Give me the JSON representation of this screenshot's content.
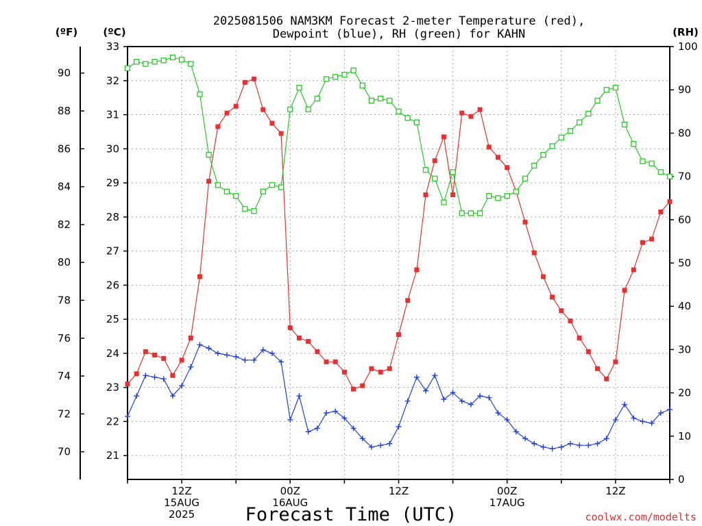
{
  "title": {
    "line1": "2025081506 NAM3KM Forecast 2-meter Temperature (red),",
    "line2": "Dewpoint (blue), RH (green) for KAHN"
  },
  "units": {
    "f": "(ºF)",
    "c": "(ºC)",
    "rh": "(RH)"
  },
  "xlabel": "Forecast Time (UTC)",
  "credit": "coolwx.com/modelts",
  "x_tick_labels": [
    {
      "h": 6,
      "lines": [
        "12Z",
        "15AUG",
        "2025"
      ]
    },
    {
      "h": 18,
      "lines": [
        "00Z",
        "16AUG"
      ]
    },
    {
      "h": 30,
      "lines": [
        "12Z"
      ]
    },
    {
      "h": 42,
      "lines": [
        "00Z",
        "17AUG"
      ]
    },
    {
      "h": 54,
      "lines": [
        "12Z"
      ]
    }
  ],
  "colors": {
    "temp": "#e8302e",
    "dew": "#1c3fdc",
    "rh": "#22cc22",
    "grid": "#a0a0a0"
  },
  "chart_data": {
    "type": "line",
    "title": "2025081506 NAM3KM Forecast 2-meter Temperature (red), Dewpoint (blue), RH (green) for KAHN",
    "xlabel": "Forecast Time (UTC)",
    "x_description": "Forecast hours from 2025-08-15 06Z, hourly, 0-60",
    "xlim": [
      0,
      60
    ],
    "y_left_celsius": {
      "ylim": [
        20.3,
        33
      ],
      "ticks": [
        21,
        22,
        23,
        24,
        25,
        26,
        27,
        28,
        29,
        30,
        31,
        32,
        33
      ]
    },
    "y_left_fahrenheit": {
      "ticks": [
        70,
        72,
        74,
        76,
        78,
        80,
        82,
        84,
        86,
        88,
        90
      ]
    },
    "y_right_rh": {
      "ylim": [
        0,
        100
      ],
      "ticks": [
        0,
        10,
        20,
        30,
        40,
        50,
        60,
        70,
        80,
        90,
        100
      ]
    },
    "grid": true,
    "series": [
      {
        "name": "Temperature",
        "axis": "celsius",
        "marker": "filled-square",
        "values": [
          23.1,
          23.4,
          24.05,
          23.95,
          23.85,
          23.35,
          23.8,
          24.45,
          26.25,
          29.05,
          30.65,
          31.05,
          31.25,
          31.95,
          32.05,
          31.15,
          30.75,
          30.45,
          24.75,
          24.45,
          24.35,
          24.05,
          23.75,
          23.75,
          23.45,
          22.95,
          23.05,
          23.55,
          23.45,
          23.55,
          24.55,
          25.55,
          26.45,
          28.65,
          29.65,
          30.35,
          28.65,
          31.05,
          30.95,
          31.15,
          30.05,
          29.75,
          29.45,
          28.75,
          27.85,
          26.95,
          26.25,
          25.65,
          25.25,
          24.95,
          24.45,
          24.05,
          23.55,
          23.25,
          23.75,
          25.85,
          26.45,
          27.25,
          27.35,
          28.15,
          28.45
        ]
      },
      {
        "name": "Dewpoint",
        "axis": "celsius",
        "marker": "plus",
        "values": [
          22.15,
          22.75,
          23.35,
          23.3,
          23.25,
          22.75,
          23.05,
          23.6,
          24.25,
          24.15,
          24.0,
          23.95,
          23.9,
          23.8,
          23.8,
          24.1,
          24.0,
          23.75,
          22.05,
          22.75,
          21.7,
          21.8,
          22.25,
          22.3,
          22.1,
          21.8,
          21.5,
          21.25,
          21.3,
          21.35,
          21.85,
          22.6,
          23.3,
          22.9,
          23.35,
          22.65,
          22.85,
          22.6,
          22.5,
          22.75,
          22.7,
          22.25,
          22.05,
          21.7,
          21.5,
          21.35,
          21.25,
          21.2,
          21.25,
          21.35,
          21.3,
          21.3,
          21.35,
          21.5,
          22.05,
          22.5,
          22.1,
          22.0,
          21.95,
          22.25,
          22.35
        ]
      },
      {
        "name": "RH",
        "axis": "rh",
        "marker": "open-square",
        "values": [
          95,
          96.5,
          96,
          96.5,
          96.8,
          97.5,
          97,
          96,
          89,
          75,
          68,
          66.5,
          65.5,
          62.5,
          62,
          66.5,
          68,
          67.5,
          85.5,
          90.5,
          85.5,
          88,
          92.5,
          93,
          93.5,
          94.5,
          91,
          87.5,
          88,
          87.5,
          85,
          83.5,
          82.5,
          71.5,
          69.5,
          64,
          71,
          61.5,
          61.5,
          61.5,
          65.5,
          65,
          65.5,
          66.5,
          69.5,
          72.5,
          75,
          77,
          79,
          80.5,
          82.5,
          84.5,
          87.5,
          90,
          90.5,
          82,
          77.5,
          73.5,
          73,
          71,
          70
        ]
      }
    ]
  }
}
